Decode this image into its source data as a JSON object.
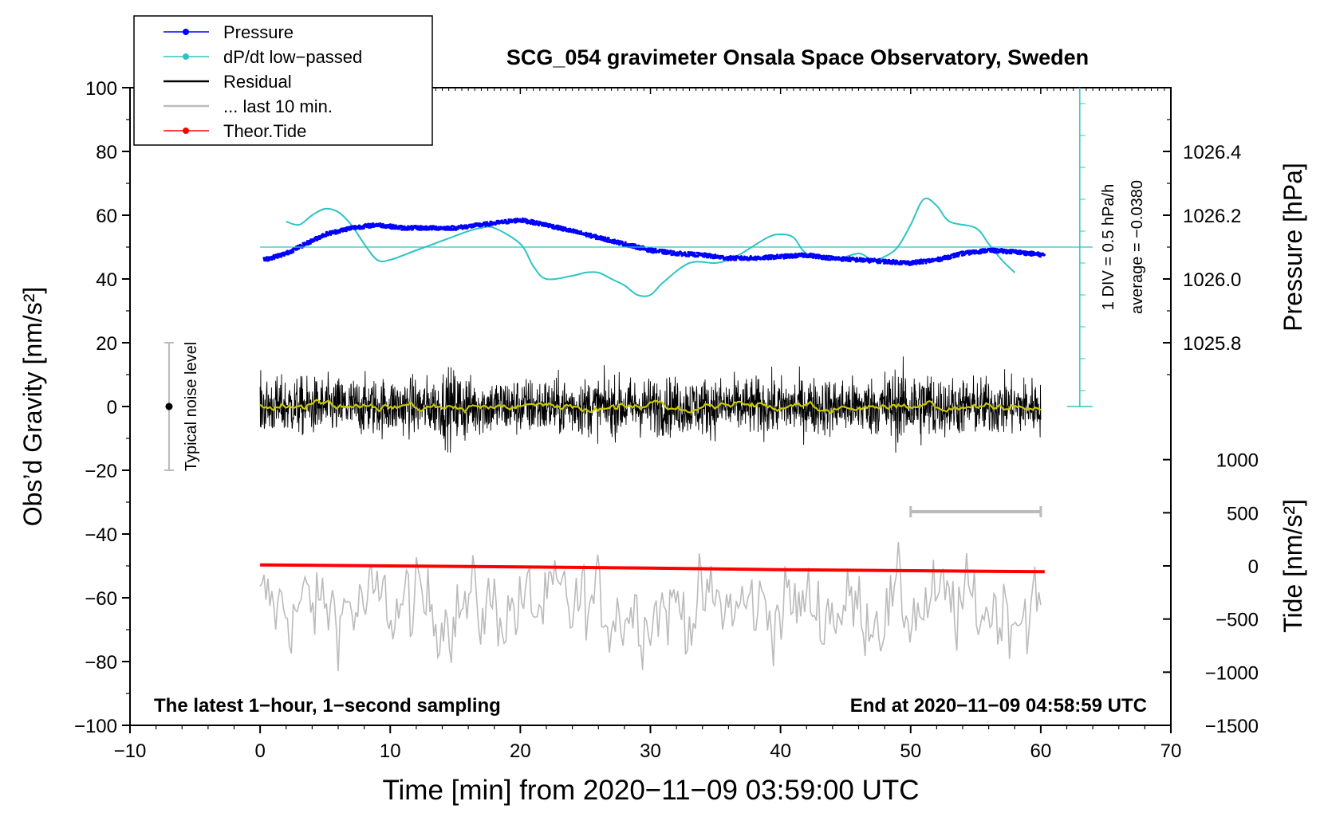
{
  "chart_data": {
    "type": "line",
    "title": "SCG_054 gravimeter Onsala Space Observatory, Sweden",
    "xlabel": "Time [min] from 2020−11−09 03:59:00 UTC",
    "ylabel_left": "Obs’d Gravity [nm/s²]",
    "ylabel_right_top": "Pressure [hPa]",
    "ylabel_right_bottom": "Tide [nm/s²]",
    "xlim": [
      -10,
      70
    ],
    "ylim": [
      -100,
      100
    ],
    "x_ticks": [
      "−10",
      "0",
      "10",
      "20",
      "30",
      "40",
      "50",
      "60",
      "70"
    ],
    "y_ticks": [
      "−100",
      "−80",
      "−60",
      "−40",
      "−20",
      "0",
      "20",
      "40",
      "60",
      "80",
      "100"
    ],
    "pressure_axis": {
      "ticks": [
        "1025.8",
        "1026.0",
        "1026.2",
        "1026.4"
      ],
      "values": [
        1025.8,
        1026.0,
        1026.2,
        1026.4
      ]
    },
    "tide_axis": {
      "ticks": [
        "−1500",
        "−1000",
        "−500",
        "0",
        "500",
        "1000"
      ],
      "values": [
        -1500,
        -1000,
        -500,
        0,
        500,
        1000
      ]
    },
    "legend": [
      {
        "label": "Pressure",
        "color": "#0000ff",
        "marker": true
      },
      {
        "label": "dP/dt low−passed",
        "color": "#2ec4c4",
        "marker": true
      },
      {
        "label": "Residual",
        "color": "#000000",
        "marker": false
      },
      {
        "label": "... last 10 min.",
        "color": "#bbbbbb",
        "marker": false
      },
      {
        "label": "Theor.Tide",
        "color": "#ff0000",
        "marker": true
      }
    ],
    "annotations": {
      "div_label": "1 DIV = 0.5 hPa/h",
      "average_label": "average = −0.0380",
      "noise_label": "Typical noise level",
      "bottom_left": "The latest 1−hour, 1−second sampling",
      "bottom_right": "End at 2020−11−09 04:58:59 UTC"
    },
    "series": [
      {
        "name": "Pressure",
        "unit": "hPa",
        "x": [
          0.3,
          2,
          4,
          5,
          7,
          9,
          11,
          13,
          15,
          17,
          19,
          20,
          22,
          24,
          26,
          28,
          30,
          32,
          34,
          36,
          38,
          40,
          42,
          44,
          46,
          48,
          50,
          52,
          54,
          56,
          58,
          60.3
        ],
        "values": [
          1026.06,
          1026.08,
          1026.12,
          1026.14,
          1026.16,
          1026.17,
          1026.16,
          1026.16,
          1026.16,
          1026.17,
          1026.18,
          1026.185,
          1026.17,
          1026.15,
          1026.13,
          1026.11,
          1026.09,
          1026.08,
          1026.075,
          1026.065,
          1026.065,
          1026.07,
          1026.075,
          1026.065,
          1026.06,
          1026.055,
          1026.05,
          1026.06,
          1026.08,
          1026.09,
          1026.085,
          1026.075
        ]
      },
      {
        "name": "dP/dt low−passed",
        "unit": "nm/s² equivalent (1 DIV = 0.5 hPa/h)",
        "x": [
          2,
          3,
          4,
          5,
          6,
          7,
          8,
          9,
          10,
          12,
          14,
          16,
          17,
          18,
          20,
          21,
          22,
          24,
          25,
          26,
          27,
          28,
          29,
          30,
          31,
          33,
          35,
          36,
          37,
          39,
          40,
          41,
          42,
          44,
          46,
          47,
          48,
          49,
          50,
          51,
          52,
          53,
          55,
          56,
          57,
          58
        ],
        "values": [
          58,
          57,
          60,
          62,
          61,
          57,
          51,
          46,
          46,
          49,
          52,
          55,
          56,
          56,
          51,
          44,
          40,
          41,
          42,
          42,
          40,
          38,
          35,
          35,
          39,
          45,
          45,
          46,
          48,
          53,
          54,
          53,
          48,
          46,
          48,
          46,
          47,
          50,
          57,
          65,
          63,
          58,
          56,
          51,
          46,
          42
        ]
      },
      {
        "name": "Residual",
        "unit": "nm/s²",
        "x": [
          0,
          60
        ],
        "values": [
          0,
          0
        ],
        "amplitude": 10
      },
      {
        "name": "... last 10 min.",
        "unit": "nm/s²",
        "x": [
          0,
          60
        ],
        "values": [
          -63,
          -63
        ],
        "amplitude": 12
      },
      {
        "name": "Theor.Tide",
        "unit": "nm/s²",
        "x": [
          0,
          10,
          20,
          30,
          40,
          50,
          60.3
        ],
        "values": [
          10,
          0,
          -10,
          -20,
          -35,
          -45,
          -55
        ]
      }
    ],
    "noise_bar": {
      "x": -7,
      "y_low": -20,
      "y_high": 20
    },
    "scale_bar": {
      "x_start": 50,
      "x_end": 60,
      "y": -33
    }
  }
}
